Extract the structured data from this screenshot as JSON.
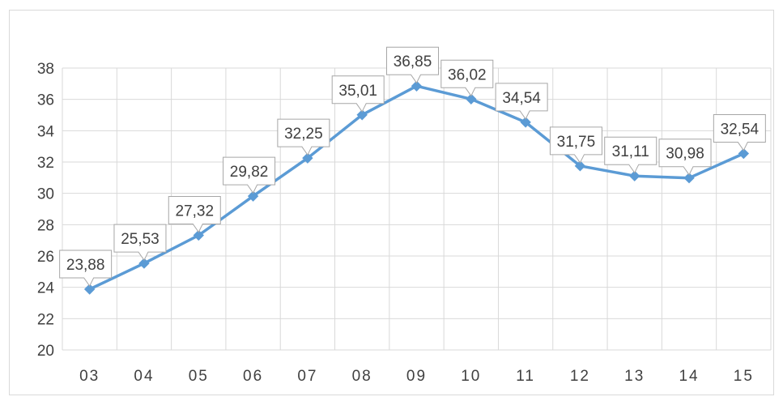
{
  "chart_data": {
    "type": "line",
    "title": "",
    "xlabel": "",
    "ylabel": "",
    "categories": [
      "03",
      "04",
      "05",
      "06",
      "07",
      "08",
      "09",
      "10",
      "11",
      "12",
      "13",
      "14",
      "15"
    ],
    "series": [
      {
        "values": [
          23.88,
          25.53,
          27.32,
          29.82,
          32.25,
          35.01,
          36.85,
          36.02,
          34.54,
          31.75,
          31.11,
          30.98,
          32.54
        ],
        "labels": [
          "23,88",
          "25,53",
          "27,32",
          "29,82",
          "32,25",
          "35,01",
          "36,85",
          "36,02",
          "34,54",
          "31,75",
          "31,11",
          "30,98",
          "32,54"
        ],
        "color": "#5b9bd5",
        "marker": "diamond"
      }
    ],
    "ylim": [
      20,
      38
    ],
    "ytick_step": 2,
    "yticks": [
      "20",
      "22",
      "24",
      "26",
      "28",
      "30",
      "32",
      "34",
      "36",
      "38"
    ],
    "grid": true,
    "legend": "none",
    "gridline_color": "#d9d9d9",
    "label_border_color": "#a6a6a6"
  }
}
